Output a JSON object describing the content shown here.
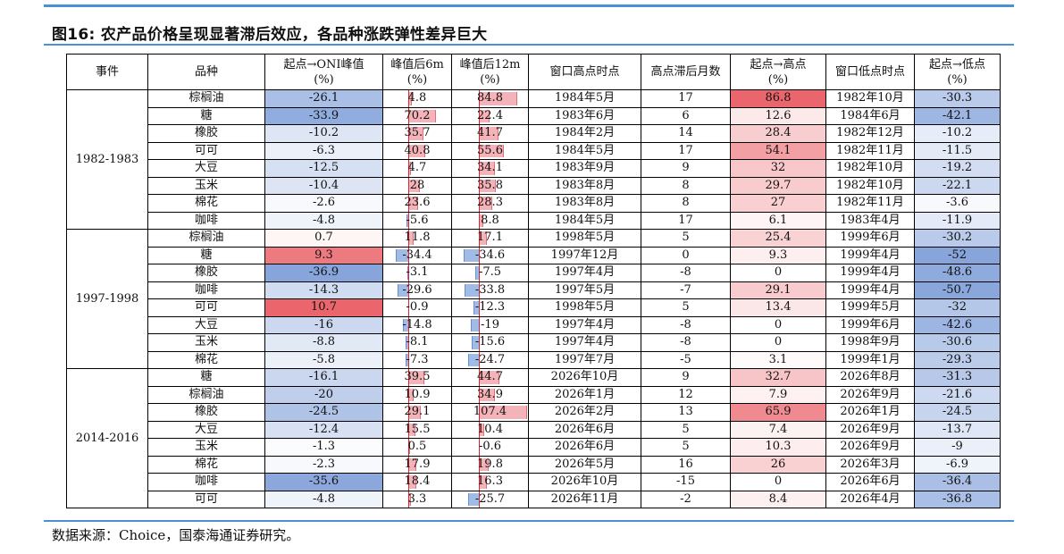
{
  "caption": "图16: 农产品价格呈现显著滞后效应，各品种涨跌弹性差异巨大",
  "source": "数据来源：Choice，国泰海通证券研究。",
  "headers": [
    "事件",
    "品种",
    "起点→ONI峰值\n(%)",
    "峰值后6m\n(%)",
    "峰值后12m\n(%)",
    "窗口高点时点",
    "高点滞后月数",
    "起点→高点\n(%)",
    "窗口低点时点",
    "起点→低点\n(%)"
  ],
  "groups": [
    {
      "event": "1982-1983",
      "rows": [
        {
          "item": "棕榈油",
          "oni": "-26.1",
          "p6": "4.8",
          "p12": "84.8",
          "high_date": "1984年5月",
          "lag": "17",
          "to_high": "86.8",
          "low_date": "1982年10月",
          "to_low": "-30.3"
        },
        {
          "item": "糖",
          "oni": "-33.9",
          "p6": "70.2",
          "p12": "22.4",
          "high_date": "1983年6月",
          "lag": "6",
          "to_high": "12.6",
          "low_date": "1984年6月",
          "to_low": "-42.1"
        },
        {
          "item": "橡胶",
          "oni": "-10.2",
          "p6": "35.7",
          "p12": "41.7",
          "high_date": "1984年2月",
          "lag": "14",
          "to_high": "28.4",
          "low_date": "1982年12月",
          "to_low": "-10.2"
        },
        {
          "item": "可可",
          "oni": "-6.3",
          "p6": "40.8",
          "p12": "55.6",
          "high_date": "1984年5月",
          "lag": "17",
          "to_high": "54.1",
          "low_date": "1982年11月",
          "to_low": "-11.5"
        },
        {
          "item": "大豆",
          "oni": "-12.5",
          "p6": "4.7",
          "p12": "34.1",
          "high_date": "1983年9月",
          "lag": "9",
          "to_high": "32",
          "low_date": "1982年10月",
          "to_low": "-19.2"
        },
        {
          "item": "玉米",
          "oni": "-10.4",
          "p6": "28",
          "p12": "35.8",
          "high_date": "1983年8月",
          "lag": "8",
          "to_high": "29.7",
          "low_date": "1982年10月",
          "to_low": "-22.1"
        },
        {
          "item": "棉花",
          "oni": "-2.6",
          "p6": "23.6",
          "p12": "28.3",
          "high_date": "1983年8月",
          "lag": "8",
          "to_high": "27",
          "low_date": "1982年11月",
          "to_low": "-3.6"
        },
        {
          "item": "咖啡",
          "oni": "-4.8",
          "p6": "-5.6",
          "p12": "8.8",
          "high_date": "1984年5月",
          "lag": "17",
          "to_high": "6.1",
          "low_date": "1983年4月",
          "to_low": "-11.9"
        }
      ]
    },
    {
      "event": "1997-1998",
      "rows": [
        {
          "item": "棕榈油",
          "oni": "0.7",
          "p6": "11.8",
          "p12": "17.1",
          "high_date": "1998年5月",
          "lag": "5",
          "to_high": "25.4",
          "low_date": "1999年6月",
          "to_low": "-30.2"
        },
        {
          "item": "糖",
          "oni": "9.3",
          "p6": "-34.4",
          "p12": "-34.6",
          "high_date": "1997年12月",
          "lag": "0",
          "to_high": "9.3",
          "low_date": "1999年4月",
          "to_low": "-52"
        },
        {
          "item": "橡胶",
          "oni": "-36.9",
          "p6": "-3.1",
          "p12": "-7.5",
          "high_date": "1997年4月",
          "lag": "-8",
          "to_high": "0",
          "low_date": "1999年4月",
          "to_low": "-48.6"
        },
        {
          "item": "咖啡",
          "oni": "-14.3",
          "p6": "-29.6",
          "p12": "-33.8",
          "high_date": "1997年5月",
          "lag": "-7",
          "to_high": "29.1",
          "low_date": "1999年4月",
          "to_low": "-50.7"
        },
        {
          "item": "可可",
          "oni": "10.7",
          "p6": "-0.9",
          "p12": "-12.3",
          "high_date": "1998年5月",
          "lag": "5",
          "to_high": "13.4",
          "low_date": "1999年5月",
          "to_low": "-32"
        },
        {
          "item": "大豆",
          "oni": "-16",
          "p6": "-14.8",
          "p12": "-19",
          "high_date": "1997年4月",
          "lag": "-8",
          "to_high": "0",
          "low_date": "1999年6月",
          "to_low": "-42.6"
        },
        {
          "item": "玉米",
          "oni": "-8.8",
          "p6": "-8.1",
          "p12": "-15.6",
          "high_date": "1997年4月",
          "lag": "-8",
          "to_high": "0",
          "low_date": "1998年9月",
          "to_low": "-30.6"
        },
        {
          "item": "棉花",
          "oni": "-5.8",
          "p6": "-7.3",
          "p12": "-24.7",
          "high_date": "1997年7月",
          "lag": "-5",
          "to_high": "3.1",
          "low_date": "1999年1月",
          "to_low": "-29.3"
        }
      ]
    },
    {
      "event": "2014-2016",
      "rows": [
        {
          "item": "糖",
          "oni": "-16.1",
          "p6": "39.5",
          "p12": "44.7",
          "high_date": "2026年10月",
          "lag": "9",
          "to_high": "32.7",
          "low_date": "2026年8月",
          "to_low": "-31.3"
        },
        {
          "item": "棕榈油",
          "oni": "-20",
          "p6": "10.9",
          "p12": "34.9",
          "high_date": "2026年1月",
          "lag": "12",
          "to_high": "7.9",
          "low_date": "2026年9月",
          "to_low": "-21.6"
        },
        {
          "item": "橡胶",
          "oni": "-24.5",
          "p6": "29.1",
          "p12": "107.4",
          "high_date": "2026年2月",
          "lag": "13",
          "to_high": "65.9",
          "low_date": "2026年1月",
          "to_low": "-24.5"
        },
        {
          "item": "大豆",
          "oni": "-12.4",
          "p6": "15.5",
          "p12": "10.4",
          "high_date": "2026年6月",
          "lag": "5",
          "to_high": "7.4",
          "low_date": "2026年9月",
          "to_low": "-13.7"
        },
        {
          "item": "玉米",
          "oni": "-1.3",
          "p6": "0.5",
          "p12": "-0.6",
          "high_date": "2026年6月",
          "lag": "5",
          "to_high": "10.3",
          "low_date": "2026年9月",
          "to_low": "-9"
        },
        {
          "item": "棉花",
          "oni": "-2.3",
          "p6": "17.9",
          "p12": "19.8",
          "high_date": "2026年5月",
          "lag": "16",
          "to_high": "26",
          "low_date": "2026年3月",
          "to_low": "-6.9"
        },
        {
          "item": "咖啡",
          "oni": "-35.6",
          "p6": "18.4",
          "p12": "16.3",
          "high_date": "2026年10月",
          "lag": "-15",
          "to_high": "0",
          "low_date": "2026年6月",
          "to_low": "-36.4"
        },
        {
          "item": "可可",
          "oni": "-4.8",
          "p6": "3.3",
          "p12": "-25.7",
          "high_date": "2026年11月",
          "lag": "-2",
          "to_high": "8.4",
          "low_date": "2026年4月",
          "to_low": "-36.8"
        }
      ]
    }
  ],
  "colors": {
    "rule": "#4a90d9",
    "heat_pos": "#e8555c",
    "heat_neg": "#5f86cf",
    "bar_pos": "#f3b3b8",
    "bar_neg": "#9fbbe6",
    "bar_axis": "#dd2233"
  }
}
